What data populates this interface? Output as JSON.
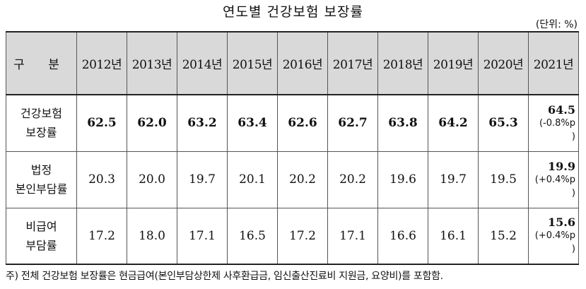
{
  "title": "연도별 건강보험 보장률",
  "unit": "(단위: %)",
  "header": {
    "label": "구 분",
    "years": [
      "2012년",
      "2013년",
      "2014년",
      "2015년",
      "2016년",
      "2017년",
      "2018년",
      "2019년",
      "2020년",
      "2021년"
    ]
  },
  "rows": [
    {
      "label_line1": "건강보험",
      "label_line2": "보장률",
      "values": [
        "62.5",
        "62.0",
        "63.2",
        "63.4",
        "62.6",
        "62.7",
        "63.8",
        "64.2",
        "65.3"
      ],
      "latest": "64.5",
      "latest_change": "(-0.8%p",
      "latest_change_close": ")"
    },
    {
      "label_line1": "법정",
      "label_line2": "본인부담률",
      "values": [
        "20.3",
        "20.0",
        "19.7",
        "20.1",
        "20.2",
        "20.2",
        "19.6",
        "19.7",
        "19.5"
      ],
      "latest": "19.9",
      "latest_change": "(+0.4%p",
      "latest_change_close": ")"
    },
    {
      "label_line1": "비급여",
      "label_line2": "부담률",
      "values": [
        "17.2",
        "18.0",
        "17.1",
        "16.5",
        "17.2",
        "17.1",
        "16.6",
        "16.1",
        "15.2"
      ],
      "latest": "15.6",
      "latest_change": "(+0.4%p",
      "latest_change_close": ")"
    }
  ],
  "note": "주) 전체 건강보험 보장률은 현금급여(본인부담상한제 사후환급금, 임신출산진료비 지원금, 요양비)를 포함함."
}
